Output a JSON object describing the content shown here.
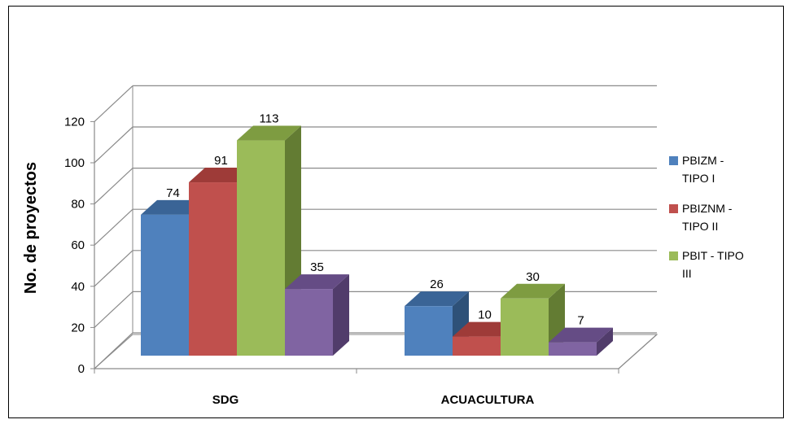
{
  "chart_data": {
    "type": "bar",
    "title": "",
    "xlabel": "",
    "ylabel": "No. de proyectos",
    "ylim": [
      0,
      120
    ],
    "yticks": [
      0,
      20,
      40,
      60,
      80,
      100,
      120
    ],
    "categories": [
      "SDG",
      "ACUACULTURA"
    ],
    "series": [
      {
        "name": "PBIZM - TIPO I",
        "values": [
          74,
          26
        ],
        "color": "#4F81BD",
        "top": "#3A6496",
        "side": "#2E5178"
      },
      {
        "name": "PBIZNM - TIPO II",
        "values": [
          91,
          10
        ],
        "color": "#C0504D",
        "top": "#9E3B38",
        "side": "#7F2E2C"
      },
      {
        "name": "PBIT - TIPO III",
        "values": [
          113,
          30
        ],
        "color": "#9BBB59",
        "top": "#7E9C41",
        "side": "#637C33"
      },
      {
        "name": "",
        "values": [
          35,
          7
        ],
        "color": "#8064A2",
        "top": "#654C85",
        "side": "#513C6B"
      }
    ],
    "legend_position": "right",
    "grid": true,
    "style": "3d-clustered-column"
  }
}
